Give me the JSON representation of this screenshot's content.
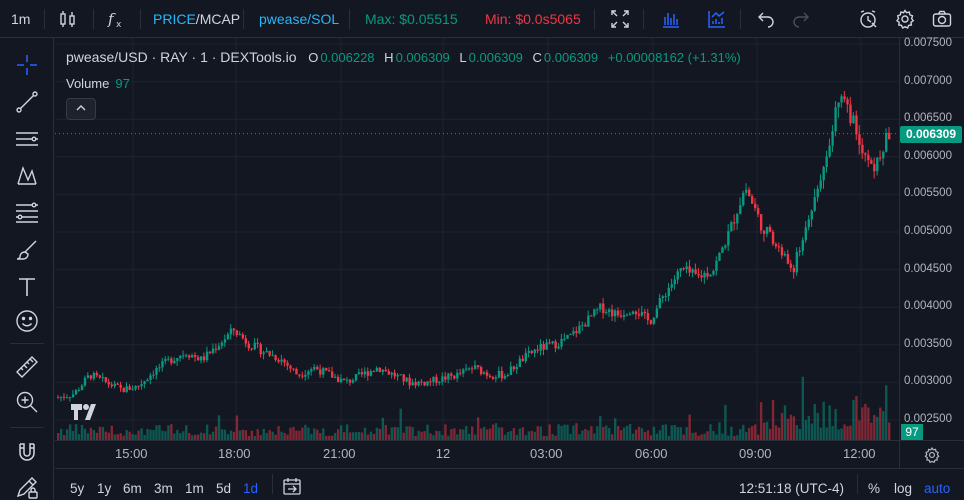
{
  "toolbar": {
    "interval": "1m",
    "price_mcap_a": "PRICE",
    "price_mcap_sep": "/",
    "price_mcap_b": "MCAP",
    "pair_quote": "pwease/SOL",
    "max_label": "Max: $0.05515",
    "min_label": "Min: $0.0s5065"
  },
  "legend": {
    "symbol": "pwease/USD · RAY · 1 · DEXTools.io",
    "o_label": "O",
    "o_value": "0.006228",
    "h_label": "H",
    "h_value": "0.006309",
    "l_label": "L",
    "l_value": "0.006309",
    "c_label": "C",
    "c_value": "0.006309",
    "change": "+0.00008162 (+1.31%)",
    "volume_label": "Volume",
    "volume_value": "97"
  },
  "price_axis": {
    "labels": [
      "0.007500",
      "0.007000",
      "0.006500",
      "0.006000",
      "0.005500",
      "0.005000",
      "0.004500",
      "0.004000",
      "0.003500",
      "0.003000",
      "0.002500"
    ],
    "current_price": "0.006309",
    "volume_tag": "97"
  },
  "time_axis": {
    "labels": [
      "15:00",
      "18:00",
      "21:00",
      "12",
      "03:00",
      "06:00",
      "09:00",
      "12:00"
    ]
  },
  "bottom": {
    "timeframes": [
      "5y",
      "1y",
      "6m",
      "3m",
      "1m",
      "5d",
      "1d"
    ],
    "active_timeframe": "1d",
    "clock": "12:51:18 (UTC-4)",
    "percent": "%",
    "log": "log",
    "auto": "auto"
  },
  "icons": {
    "left_toolbar": [
      "crosshair-icon",
      "trend-line-icon",
      "horizontal-lines-icon",
      "pattern-icon",
      "fib-icon",
      "brush-icon",
      "text-icon",
      "emoji-icon",
      "ruler-icon",
      "zoom-in-icon",
      "magnet-icon",
      "pencil-lock-icon"
    ],
    "top_toolbar": [
      "candles-icon",
      "fx-indicators-icon",
      "fullscreen-icon",
      "bars-chart-icon",
      "line-bars-icon",
      "undo-icon",
      "redo-icon",
      "alert-icon",
      "settings-icon",
      "camera-icon"
    ]
  },
  "colors": {
    "up": "#089981",
    "down": "#f23645",
    "accent": "#2962ff",
    "pair": "#29b6f6",
    "background": "#131722"
  },
  "chart_data": {
    "type": "candlestick",
    "x": [
      "12:45",
      "13:00",
      "13:30",
      "14:00",
      "14:30",
      "15:00",
      "15:30",
      "16:00",
      "16:30",
      "17:00",
      "17:30",
      "18:00",
      "18:30",
      "19:00",
      "19:30",
      "20:00",
      "20:30",
      "21:00",
      "21:30",
      "22:00",
      "22:30",
      "23:00",
      "23:30",
      "00:00",
      "00:30",
      "01:00",
      "01:30",
      "02:00",
      "02:30",
      "03:00",
      "03:30",
      "04:00",
      "04:30",
      "05:00",
      "05:30",
      "06:00",
      "06:30",
      "07:00",
      "07:30",
      "08:00",
      "08:30",
      "09:00",
      "09:30",
      "10:00",
      "10:30",
      "11:00",
      "11:15",
      "11:30",
      "11:45",
      "12:00",
      "12:15",
      "12:30",
      "12:51"
    ],
    "close": [
      0.0028,
      0.00285,
      0.0031,
      0.003,
      0.0029,
      0.00295,
      0.00315,
      0.0033,
      0.0034,
      0.0033,
      0.0035,
      0.0037,
      0.0035,
      0.0034,
      0.0033,
      0.0031,
      0.0032,
      0.0031,
      0.003,
      0.0031,
      0.0032,
      0.0031,
      0.003,
      0.003,
      0.00305,
      0.0031,
      0.0032,
      0.0031,
      0.0031,
      0.0033,
      0.00345,
      0.0035,
      0.0036,
      0.0038,
      0.004,
      0.0039,
      0.004,
      0.0038,
      0.0042,
      0.0045,
      0.0044,
      0.0045,
      0.005,
      0.0056,
      0.0051,
      0.0048,
      0.0045,
      0.0052,
      0.006,
      0.0069,
      0.0063,
      0.0058,
      0.006309
    ],
    "ylim": [
      0.0022,
      0.0075
    ],
    "grid": true,
    "volume_last": 97
  }
}
